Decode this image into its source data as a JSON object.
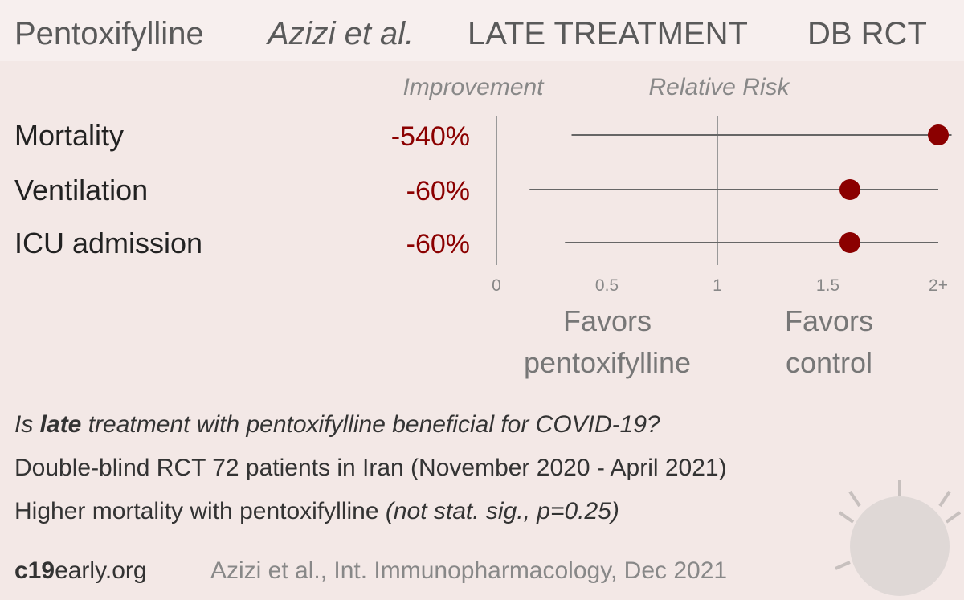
{
  "header": {
    "drug": "Pentoxifylline",
    "study": "Azizi et al.",
    "timing": "LATE TREATMENT",
    "design": "DB RCT"
  },
  "chart_data": {
    "type": "forest",
    "column_titles": [
      "Improvement",
      "Relative Risk"
    ],
    "categories": [
      "Mortality",
      "Ventilation",
      "ICU admission"
    ],
    "improvement_labels": [
      "-540%",
      "-60%",
      "-60%"
    ],
    "values": [
      2.0,
      1.6,
      1.6
    ],
    "ci_low": [
      0.34,
      0.15,
      0.31
    ],
    "ci_high": [
      2.06,
      2.0,
      2.0
    ],
    "color": "#8b0000",
    "xlim": [
      0,
      2.1
    ],
    "xticks": [
      0,
      0.5,
      1,
      1.5,
      {
        "value": 2,
        "label": "2+"
      }
    ],
    "favors": [
      [
        "Favors",
        "pentoxifylline"
      ],
      [
        "Favors",
        "control"
      ]
    ]
  },
  "summary": {
    "question": {
      "before": "Is ",
      "bold": "late",
      "after": " treatment with pentoxifylline beneficial for COVID-19?"
    },
    "design": "Double-blind RCT 72 patients in Iran (November 2020 - April 2021)",
    "result": {
      "plain": "Higher mortality with pentoxifylline ",
      "italic": "(not stat. sig., p=0.25)"
    }
  },
  "footer": {
    "brand_bold": "c19",
    "brand_rest": "early.org",
    "citation": "Azizi et al., Int. Immunopharmacology, Dec 2021"
  }
}
